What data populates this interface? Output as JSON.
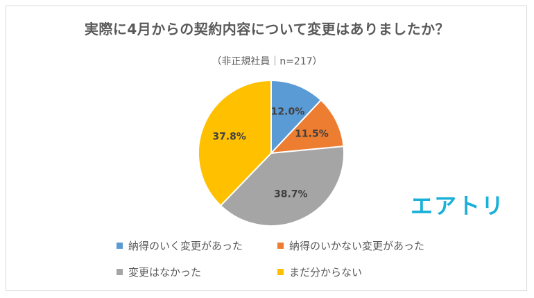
{
  "title": "実際に4月からの契約内容について変更はありましたか？",
  "subtitle": "（非正規社員｜n=217）",
  "logo_text": "エアトリ",
  "colors": {
    "logo": "#1ab0d8"
  },
  "chart_data": {
    "type": "pie",
    "title": "実際に4月からの契約内容について変更はありましたか？",
    "subtitle": "（非正規社員｜n=217）",
    "legend_position": "bottom",
    "slices": [
      {
        "label": "納得のいく変更があった",
        "value": 12.0,
        "display": "12.0%",
        "color": "#5b9bd5"
      },
      {
        "label": "納得のいかない変更があった",
        "value": 11.5,
        "display": "11.5%",
        "color": "#ed7d31"
      },
      {
        "label": "変更はなかった",
        "value": 38.7,
        "display": "38.7%",
        "color": "#a5a5a5"
      },
      {
        "label": "まだ分からない",
        "value": 37.8,
        "display": "37.8%",
        "color": "#ffc000"
      }
    ]
  }
}
